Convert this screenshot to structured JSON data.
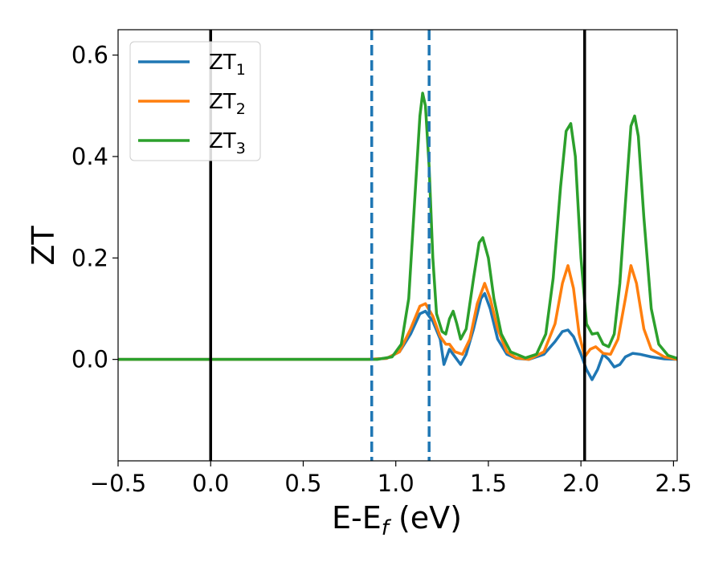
{
  "chart_data": {
    "type": "line",
    "xlabel_main": "E-E",
    "xlabel_sub": "f",
    "xlabel_unit": " (eV)",
    "ylabel": "ZT",
    "xlim": [
      -0.5,
      2.52
    ],
    "ylim": [
      -0.2,
      0.65
    ],
    "xticks": [
      -0.5,
      0.0,
      0.5,
      1.0,
      1.5,
      2.0,
      2.5
    ],
    "xtick_labels": [
      "−0.5",
      "0.0",
      "0.5",
      "1.0",
      "1.5",
      "2.0",
      "2.5"
    ],
    "yticks": [
      0.0,
      0.2,
      0.4,
      0.6
    ],
    "ytick_labels": [
      "0.0",
      "0.2",
      "0.4",
      "0.6"
    ],
    "grid": false,
    "legend_placement": "top-left",
    "vlines": [
      {
        "x": 0.0,
        "style": "solid",
        "color": "#000000"
      },
      {
        "x": 2.02,
        "style": "solid",
        "color": "#000000"
      },
      {
        "x": 0.87,
        "style": "dashed",
        "color": "#1f77b4"
      },
      {
        "x": 1.18,
        "style": "dashed",
        "color": "#1f77b4"
      }
    ],
    "series": [
      {
        "name": "ZT",
        "name_sub": "1",
        "color": "#1f77b4",
        "points": [
          [
            -0.5,
            0
          ],
          [
            0.85,
            0
          ],
          [
            0.95,
            0.002
          ],
          [
            1.02,
            0.015
          ],
          [
            1.08,
            0.05
          ],
          [
            1.13,
            0.09
          ],
          [
            1.16,
            0.095
          ],
          [
            1.2,
            0.075
          ],
          [
            1.24,
            0.04
          ],
          [
            1.26,
            -0.01
          ],
          [
            1.29,
            0.02
          ],
          [
            1.31,
            0.01
          ],
          [
            1.35,
            -0.01
          ],
          [
            1.38,
            0.01
          ],
          [
            1.42,
            0.06
          ],
          [
            1.46,
            0.12
          ],
          [
            1.48,
            0.13
          ],
          [
            1.51,
            0.1
          ],
          [
            1.55,
            0.04
          ],
          [
            1.6,
            0.01
          ],
          [
            1.65,
            0.002
          ],
          [
            1.72,
            0
          ],
          [
            1.8,
            0.01
          ],
          [
            1.86,
            0.035
          ],
          [
            1.9,
            0.055
          ],
          [
            1.93,
            0.058
          ],
          [
            1.96,
            0.045
          ],
          [
            2.0,
            0.01
          ],
          [
            2.03,
            -0.02
          ],
          [
            2.06,
            -0.04
          ],
          [
            2.09,
            -0.02
          ],
          [
            2.12,
            0.01
          ],
          [
            2.15,
            0.0
          ],
          [
            2.18,
            -0.015
          ],
          [
            2.21,
            -0.01
          ],
          [
            2.24,
            0.005
          ],
          [
            2.28,
            0.012
          ],
          [
            2.32,
            0.01
          ],
          [
            2.38,
            0.005
          ],
          [
            2.45,
            0.001
          ],
          [
            2.52,
            0
          ]
        ]
      },
      {
        "name": "ZT",
        "name_sub": "2",
        "color": "#ff7f0e",
        "points": [
          [
            -0.5,
            0
          ],
          [
            0.85,
            0
          ],
          [
            0.95,
            0.002
          ],
          [
            1.02,
            0.015
          ],
          [
            1.08,
            0.06
          ],
          [
            1.13,
            0.105
          ],
          [
            1.16,
            0.11
          ],
          [
            1.2,
            0.085
          ],
          [
            1.24,
            0.045
          ],
          [
            1.27,
            0.03
          ],
          [
            1.29,
            0.03
          ],
          [
            1.32,
            0.015
          ],
          [
            1.36,
            0.01
          ],
          [
            1.4,
            0.04
          ],
          [
            1.44,
            0.11
          ],
          [
            1.48,
            0.15
          ],
          [
            1.51,
            0.12
          ],
          [
            1.55,
            0.06
          ],
          [
            1.6,
            0.015
          ],
          [
            1.65,
            0.003
          ],
          [
            1.72,
            0
          ],
          [
            1.8,
            0.015
          ],
          [
            1.86,
            0.07
          ],
          [
            1.9,
            0.15
          ],
          [
            1.93,
            0.185
          ],
          [
            1.96,
            0.14
          ],
          [
            1.99,
            0.05
          ],
          [
            2.02,
            0.005
          ],
          [
            2.05,
            0.02
          ],
          [
            2.08,
            0.025
          ],
          [
            2.12,
            0.012
          ],
          [
            2.16,
            0.01
          ],
          [
            2.2,
            0.04
          ],
          [
            2.24,
            0.12
          ],
          [
            2.27,
            0.185
          ],
          [
            2.3,
            0.15
          ],
          [
            2.34,
            0.06
          ],
          [
            2.38,
            0.02
          ],
          [
            2.45,
            0.005
          ],
          [
            2.52,
            0
          ]
        ]
      },
      {
        "name": "ZT",
        "name_sub": "3",
        "color": "#2ca02c",
        "points": [
          [
            -0.5,
            0
          ],
          [
            0.9,
            0
          ],
          [
            0.98,
            0.005
          ],
          [
            1.03,
            0.03
          ],
          [
            1.07,
            0.12
          ],
          [
            1.1,
            0.3
          ],
          [
            1.13,
            0.48
          ],
          [
            1.145,
            0.525
          ],
          [
            1.16,
            0.5
          ],
          [
            1.18,
            0.38
          ],
          [
            1.2,
            0.2
          ],
          [
            1.22,
            0.09
          ],
          [
            1.25,
            0.055
          ],
          [
            1.27,
            0.05
          ],
          [
            1.29,
            0.08
          ],
          [
            1.31,
            0.095
          ],
          [
            1.33,
            0.07
          ],
          [
            1.35,
            0.04
          ],
          [
            1.38,
            0.06
          ],
          [
            1.42,
            0.16
          ],
          [
            1.45,
            0.23
          ],
          [
            1.47,
            0.24
          ],
          [
            1.5,
            0.2
          ],
          [
            1.53,
            0.12
          ],
          [
            1.57,
            0.05
          ],
          [
            1.62,
            0.015
          ],
          [
            1.7,
            0.003
          ],
          [
            1.76,
            0.01
          ],
          [
            1.81,
            0.05
          ],
          [
            1.85,
            0.16
          ],
          [
            1.89,
            0.34
          ],
          [
            1.92,
            0.45
          ],
          [
            1.945,
            0.465
          ],
          [
            1.97,
            0.4
          ],
          [
            2.0,
            0.2
          ],
          [
            2.03,
            0.07
          ],
          [
            2.06,
            0.05
          ],
          [
            2.09,
            0.052
          ],
          [
            2.12,
            0.03
          ],
          [
            2.15,
            0.025
          ],
          [
            2.18,
            0.05
          ],
          [
            2.21,
            0.15
          ],
          [
            2.25,
            0.36
          ],
          [
            2.27,
            0.46
          ],
          [
            2.29,
            0.48
          ],
          [
            2.31,
            0.44
          ],
          [
            2.34,
            0.28
          ],
          [
            2.38,
            0.1
          ],
          [
            2.42,
            0.03
          ],
          [
            2.47,
            0.008
          ],
          [
            2.52,
            0.002
          ]
        ]
      }
    ]
  }
}
